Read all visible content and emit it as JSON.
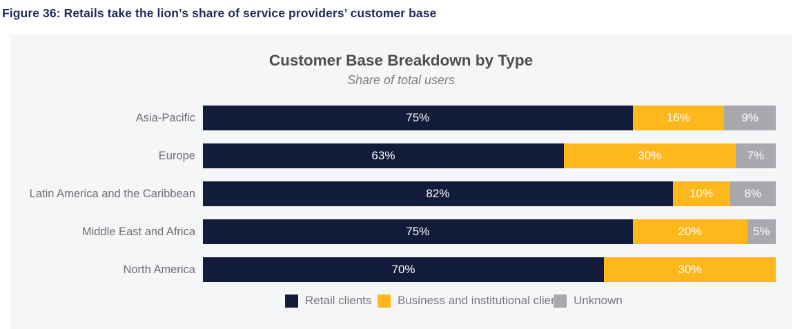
{
  "figure_caption": "Figure 36: Retails take the lion’s share of service providers’ customer base",
  "chart_data": {
    "type": "bar",
    "orientation": "horizontal",
    "stacked": true,
    "title": "Customer Base Breakdown by Type",
    "subtitle": "Share of total users",
    "value_unit": "%",
    "xlim": [
      0,
      100
    ],
    "grid": false,
    "legend_position": "bottom",
    "data_labels": "inside-center-white",
    "categories": [
      "Asia-Pacific",
      "Europe",
      "Latin America and the Caribbean",
      "Middle East and Africa",
      "North America"
    ],
    "series": [
      {
        "name": "Retail clients",
        "color": "#131b3a",
        "values": [
          75,
          63,
          82,
          75,
          70
        ]
      },
      {
        "name": "Business and institutional clients",
        "color": "#ffb81c",
        "values": [
          16,
          30,
          10,
          20,
          30
        ]
      },
      {
        "name": "Unknown",
        "color": "#a7a9ac",
        "values": [
          9,
          7,
          8,
          5,
          0
        ]
      }
    ]
  },
  "colors": {
    "panel_background": "#f5f6f8",
    "caption_text": "#1f2d57",
    "title_text": "#4d4e50",
    "subtitle_text": "#7e8083",
    "category_label_text": "#6d6f73",
    "legend_text": "#77797d",
    "bar_value_text": "#ffffff"
  }
}
